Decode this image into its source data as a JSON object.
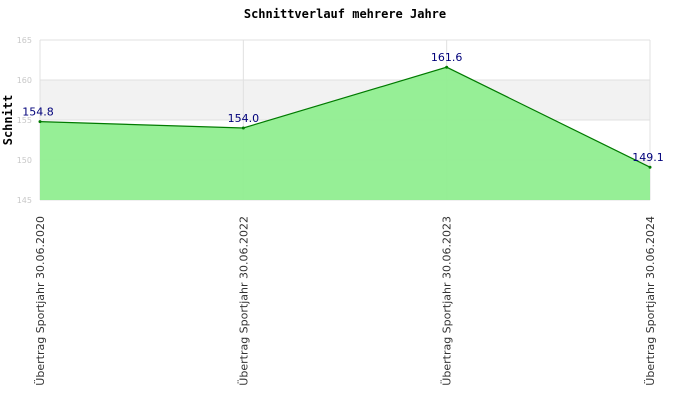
{
  "chart_data": {
    "type": "area",
    "title": "Schnittverlauf mehrere Jahre",
    "xlabel": "",
    "ylabel": "Schnitt",
    "categories": [
      "Übertrag Sportjahr 30.06.2020",
      "Übertrag Sportjahr 30.06.2022",
      "Übertrag Sportjahr 30.06.2023",
      "Übertrag Sportjahr 30.06.2024"
    ],
    "series": [
      {
        "values": [
          154.8,
          154.0,
          161.6,
          149.1
        ]
      }
    ],
    "data_labels": [
      "154.8",
      "154.0",
      "161.6",
      "149.1"
    ],
    "ylim": [
      145,
      165
    ],
    "yticks": [
      "145",
      "150",
      "155",
      "160",
      "165"
    ],
    "grid": true,
    "colors": {
      "fill": "#90ee90",
      "line": "#007a00",
      "band": "#f2f2f2",
      "grid": "#e0e0e0",
      "label": "#00007a"
    }
  }
}
